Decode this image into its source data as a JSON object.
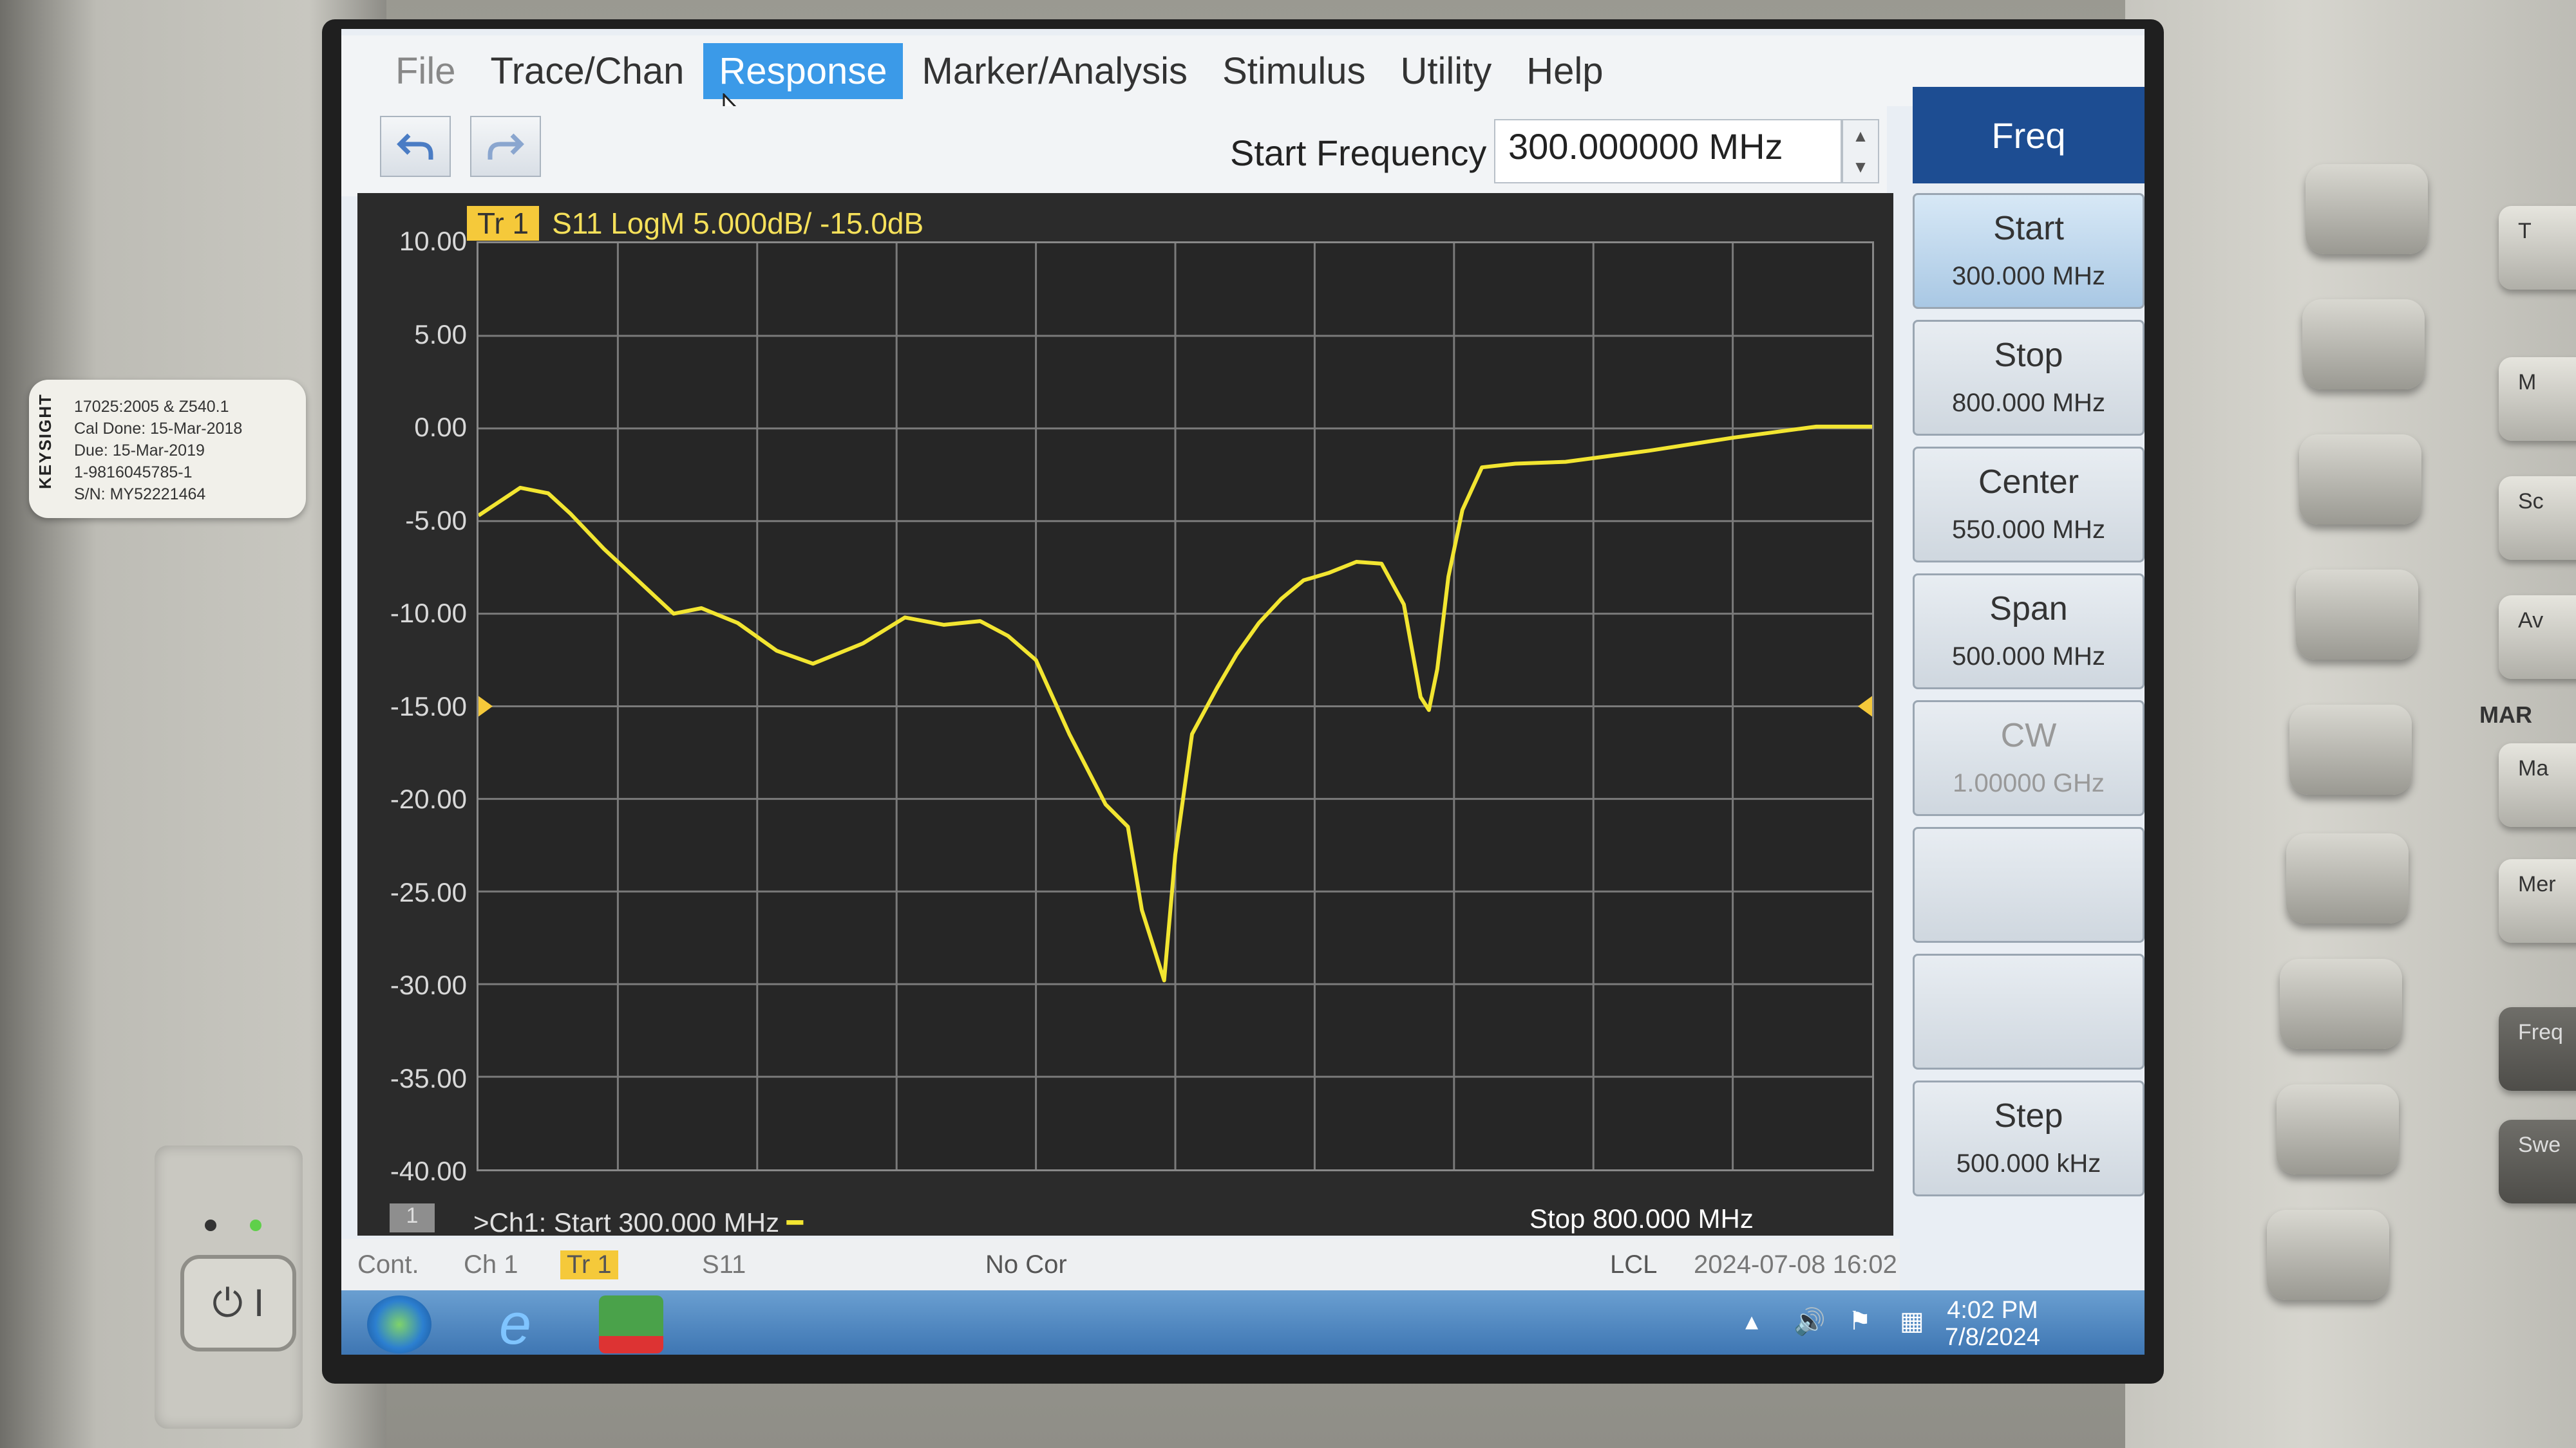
{
  "device": {
    "cal_label": {
      "brand": "KEYSIGHT",
      "line1": "17025:2005 & Z540.1",
      "cal_done_label": "Cal Done:",
      "cal_done": "15-Mar-2018",
      "due_label": "Due:",
      "due": "15-Mar-2019",
      "id_line": "1-9816045785-1",
      "sn_line": "S/N: MY52221464"
    },
    "power_symbol": "⏻ I",
    "side_buttons": [
      "T",
      "M",
      "Sc",
      "Av",
      "Ma",
      "Mer",
      "Freq",
      "Swe"
    ],
    "side_section_label": "MAR"
  },
  "menubar": {
    "items": [
      {
        "label": "File",
        "state": "dim"
      },
      {
        "label": "Trace/Chan",
        "state": "normal"
      },
      {
        "label": "Response",
        "state": "active"
      },
      {
        "label": "Marker/Analysis",
        "state": "normal"
      },
      {
        "label": "Stimulus",
        "state": "normal"
      },
      {
        "label": "Utility",
        "state": "normal"
      },
      {
        "label": "Help",
        "state": "normal"
      }
    ]
  },
  "toolbar": {
    "undo_icon": "undo-icon",
    "redo_icon": "redo-icon",
    "start_freq_label": "Start Frequency",
    "start_freq_value": "300.000000 MHz"
  },
  "plot": {
    "trace_tag": "Tr 1",
    "trace_desc": "S11 LogM 5.000dB/ -15.0dB",
    "channel_box": "1",
    "start_text": ">Ch1: Start  300.000 MHz",
    "stop_text": "Stop  800.000 MHz",
    "trace_color": "#f2e531",
    "grid_color": "#7a7a7a"
  },
  "chart_data": {
    "type": "line",
    "title": "S11 LogM 5.000dB/ -15.0dB",
    "xlabel": "",
    "ylabel": "",
    "x_unit": "MHz",
    "y_unit": "dB",
    "xlim": [
      300,
      800
    ],
    "ylim": [
      -40,
      10
    ],
    "reference_level": -15,
    "grid": true,
    "yticks": [
      "10.00",
      "5.00",
      "0.00",
      "-5.00",
      "-10.00",
      "-15.00",
      "-20.00",
      "-25.00",
      "-30.00",
      "-35.00",
      "-40.00"
    ],
    "series": [
      {
        "name": "S11",
        "x": [
          300,
          315,
          325,
          333,
          345,
          370,
          380,
          393,
          407,
          420,
          438,
          453,
          467,
          480,
          490,
          500,
          512,
          525,
          533,
          538,
          546,
          550,
          556,
          565,
          572,
          580,
          588,
          596,
          605,
          615,
          624,
          632,
          638,
          641,
          644,
          648,
          653,
          660,
          672,
          690,
          720,
          750,
          780,
          800
        ],
        "y": [
          -4.7,
          -3.2,
          -3.5,
          -4.6,
          -6.5,
          -10,
          -9.7,
          -10.5,
          -12,
          -12.7,
          -11.6,
          -10.2,
          -10.6,
          -10.4,
          -11.2,
          -12.5,
          -16.5,
          -20.3,
          -21.5,
          -26,
          -29.8,
          -23,
          -16.5,
          -14,
          -12.2,
          -10.5,
          -9.2,
          -8.2,
          -7.8,
          -7.2,
          -7.3,
          -9.5,
          -14.5,
          -15.2,
          -13,
          -8,
          -4.4,
          -2.1,
          -1.9,
          -1.8,
          -1.2,
          -0.5,
          0.1,
          0.1
        ]
      }
    ]
  },
  "softkeys": {
    "header": "Freq",
    "keys": [
      {
        "title": "Start",
        "value": "300.000 MHz",
        "state": "active"
      },
      {
        "title": "Stop",
        "value": "800.000 MHz",
        "state": "normal"
      },
      {
        "title": "Center",
        "value": "550.000 MHz",
        "state": "normal"
      },
      {
        "title": "Span",
        "value": "500.000 MHz",
        "state": "normal"
      },
      {
        "title": "CW",
        "value": "1.00000 GHz",
        "state": "dim"
      },
      {
        "title": "",
        "value": "",
        "state": "normal"
      },
      {
        "title": "",
        "value": "",
        "state": "normal"
      },
      {
        "title": "Step",
        "value": "500.000 kHz",
        "state": "normal"
      }
    ]
  },
  "statusbar": {
    "cont": "Cont.",
    "ch": "Ch 1",
    "tr": "Tr 1",
    "param": "S11",
    "correction": "No Cor",
    "lcl": "LCL",
    "datetime": "2024-07-08 16:02"
  },
  "taskbar": {
    "time": "4:02 PM",
    "date": "7/8/2024"
  }
}
